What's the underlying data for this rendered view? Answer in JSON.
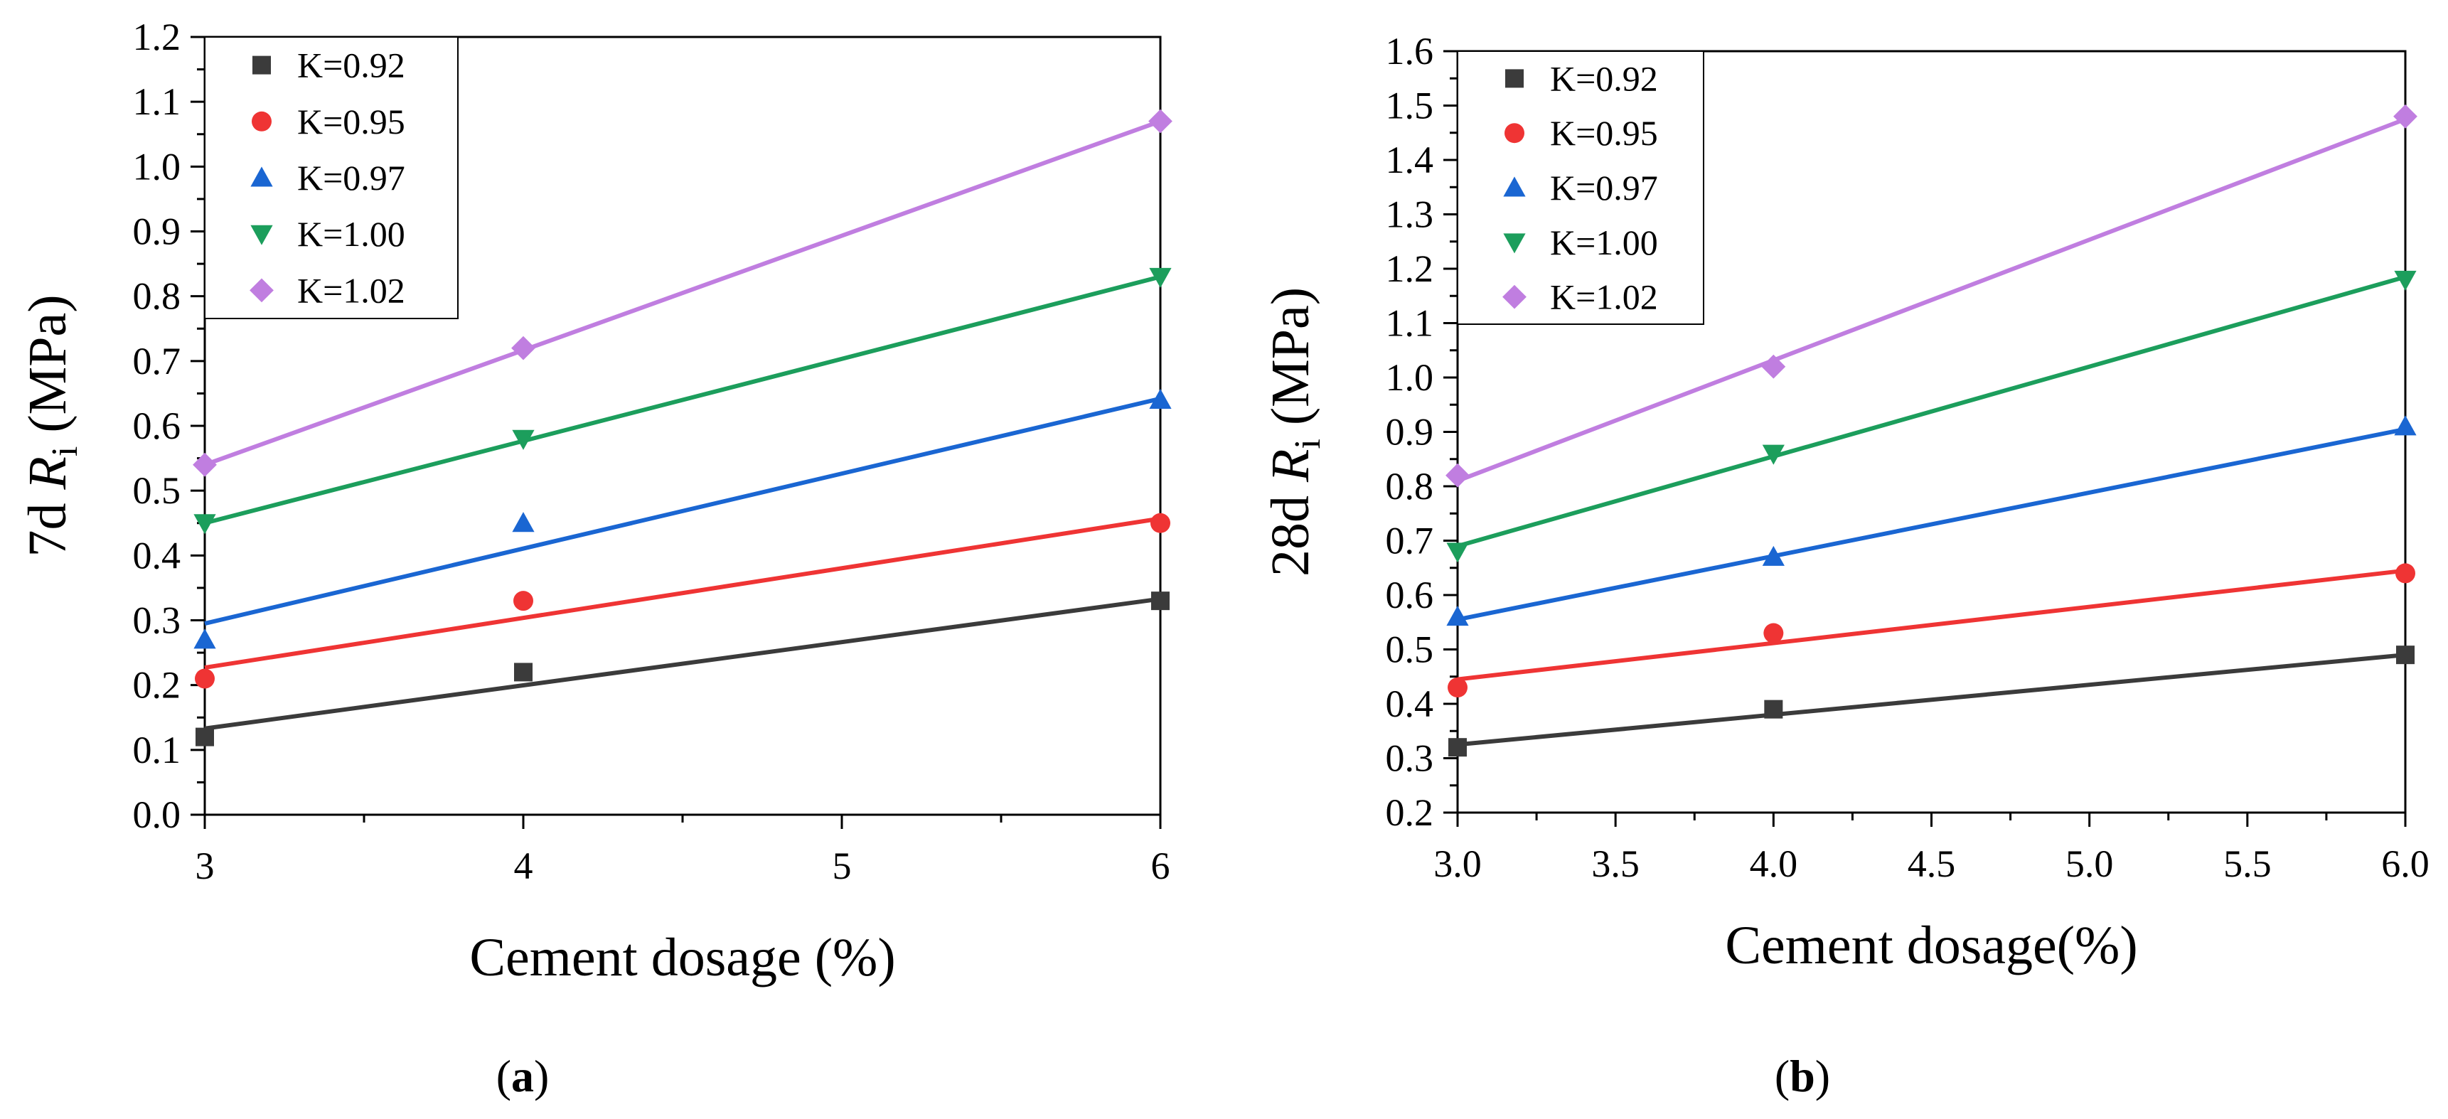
{
  "colors": {
    "K=0.92": "#3b3b3b",
    "K=0.95": "#ef3434",
    "K=0.97": "#1a66d2",
    "K=1.00": "#1c9e5c",
    "K=1.02": "#c07ee0"
  },
  "chart_data": [
    {
      "type": "scatter",
      "panel": "(a)",
      "panel_paren_open": "(",
      "panel_letter": "a",
      "panel_paren_close": ")",
      "xlabel": "Cement dosage (%)",
      "ylabel_prefix": "7d ",
      "ylabel_symbol": "R",
      "ylabel_subscript": "i",
      "ylabel_suffix": " (MPa)",
      "xlim": [
        3,
        6
      ],
      "ylim": [
        0,
        1.2
      ],
      "xticks": [
        "3",
        "4",
        "5",
        "6"
      ],
      "yticks": [
        "0.0",
        "0.1",
        "0.2",
        "0.3",
        "0.4",
        "0.5",
        "0.6",
        "0.7",
        "0.8",
        "0.9",
        "1.0",
        "1.1",
        "1.2"
      ],
      "legend_position": "top-left",
      "series": [
        {
          "name": "K=0.92",
          "marker": "square",
          "x": [
            3,
            4,
            6
          ],
          "y": [
            0.12,
            0.22,
            0.33
          ],
          "fit": [
            0.133,
            0.333
          ]
        },
        {
          "name": "K=0.95",
          "marker": "circle",
          "x": [
            3,
            4,
            6
          ],
          "y": [
            0.21,
            0.33,
            0.45
          ],
          "fit": [
            0.227,
            0.457
          ]
        },
        {
          "name": "K=0.97",
          "marker": "triangle-up",
          "x": [
            3,
            4,
            6
          ],
          "y": [
            0.27,
            0.45,
            0.64
          ],
          "fit": [
            0.295,
            0.642
          ]
        },
        {
          "name": "K=1.00",
          "marker": "triangle-down",
          "x": [
            3,
            4,
            6
          ],
          "y": [
            0.45,
            0.58,
            0.83
          ],
          "fit": [
            0.45,
            0.83
          ]
        },
        {
          "name": "K=1.02",
          "marker": "diamond",
          "x": [
            3,
            4,
            6
          ],
          "y": [
            0.54,
            0.72,
            1.07
          ],
          "fit": [
            0.54,
            1.07
          ]
        }
      ]
    },
    {
      "type": "scatter",
      "panel": "(b)",
      "panel_paren_open": "(",
      "panel_letter": "b",
      "panel_paren_close": ")",
      "xlabel": "Cement dosage(%)",
      "ylabel_prefix": "28d ",
      "ylabel_symbol": "R",
      "ylabel_subscript": "i",
      "ylabel_suffix": " (MPa)",
      "xlim": [
        3,
        6
      ],
      "ylim": [
        0.2,
        1.6
      ],
      "xticks": [
        "3.0",
        "3.5",
        "4.0",
        "4.5",
        "5.0",
        "5.5",
        "6.0"
      ],
      "yticks": [
        "0.2",
        "0.3",
        "0.4",
        "0.5",
        "0.6",
        "0.7",
        "0.8",
        "0.9",
        "1.0",
        "1.1",
        "1.2",
        "1.3",
        "1.4",
        "1.5",
        "1.6"
      ],
      "legend_position": "top-left",
      "series": [
        {
          "name": "K=0.92",
          "marker": "square",
          "x": [
            3,
            4,
            6
          ],
          "y": [
            0.32,
            0.39,
            0.49
          ],
          "fit": [
            0.325,
            0.49
          ]
        },
        {
          "name": "K=0.95",
          "marker": "circle",
          "x": [
            3,
            4,
            6
          ],
          "y": [
            0.43,
            0.53,
            0.64
          ],
          "fit": [
            0.445,
            0.645
          ]
        },
        {
          "name": "K=0.97",
          "marker": "triangle-up",
          "x": [
            3,
            4,
            6
          ],
          "y": [
            0.56,
            0.67,
            0.91
          ],
          "fit": [
            0.555,
            0.905
          ]
        },
        {
          "name": "K=1.00",
          "marker": "triangle-down",
          "x": [
            3,
            4,
            6
          ],
          "y": [
            0.68,
            0.86,
            1.18
          ],
          "fit": [
            0.69,
            1.185
          ]
        },
        {
          "name": "K=1.02",
          "marker": "diamond",
          "x": [
            3,
            4,
            6
          ],
          "y": [
            0.82,
            1.02,
            1.48
          ],
          "fit": [
            0.81,
            1.475
          ]
        }
      ]
    }
  ]
}
